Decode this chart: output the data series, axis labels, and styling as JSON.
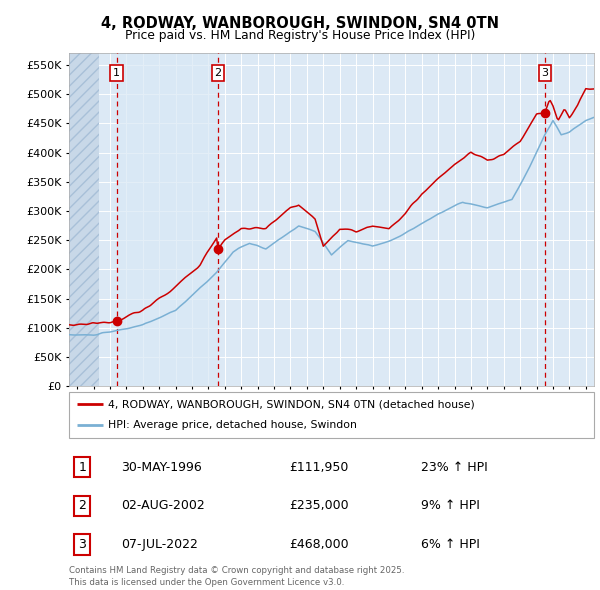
{
  "title": "4, RODWAY, WANBOROUGH, SWINDON, SN4 0TN",
  "subtitle": "Price paid vs. HM Land Registry's House Price Index (HPI)",
  "ylim": [
    0,
    570000
  ],
  "yticks": [
    0,
    50000,
    100000,
    150000,
    200000,
    250000,
    300000,
    350000,
    400000,
    450000,
    500000,
    550000
  ],
  "xlim_start": 1993.5,
  "xlim_end": 2025.5,
  "background_color": "#ffffff",
  "chart_bg_color": "#dce9f5",
  "grid_color": "#ffffff",
  "hatch_region_end": 1995.3,
  "shade_region": [
    1996.41,
    2002.58
  ],
  "sale_dates": [
    1996.41,
    2002.58,
    2022.5
  ],
  "sale_prices": [
    111950,
    235000,
    468000
  ],
  "legend_house": "4, RODWAY, WANBOROUGH, SWINDON, SN4 0TN (detached house)",
  "legend_hpi": "HPI: Average price, detached house, Swindon",
  "sale_labels": [
    "1",
    "2",
    "3"
  ],
  "sale_info": [
    {
      "num": "1",
      "date": "30-MAY-1996",
      "price": "£111,950",
      "pct": "23% ↑ HPI"
    },
    {
      "num": "2",
      "date": "02-AUG-2002",
      "price": "£235,000",
      "pct": "9% ↑ HPI"
    },
    {
      "num": "3",
      "date": "07-JUL-2022",
      "price": "£468,000",
      "pct": "6% ↑ HPI"
    }
  ],
  "footer": "Contains HM Land Registry data © Crown copyright and database right 2025.\nThis data is licensed under the Open Government Licence v3.0.",
  "line_color_house": "#cc0000",
  "line_color_hpi": "#7ab0d4",
  "dot_color": "#cc0000",
  "vline_color": "#cc0000"
}
